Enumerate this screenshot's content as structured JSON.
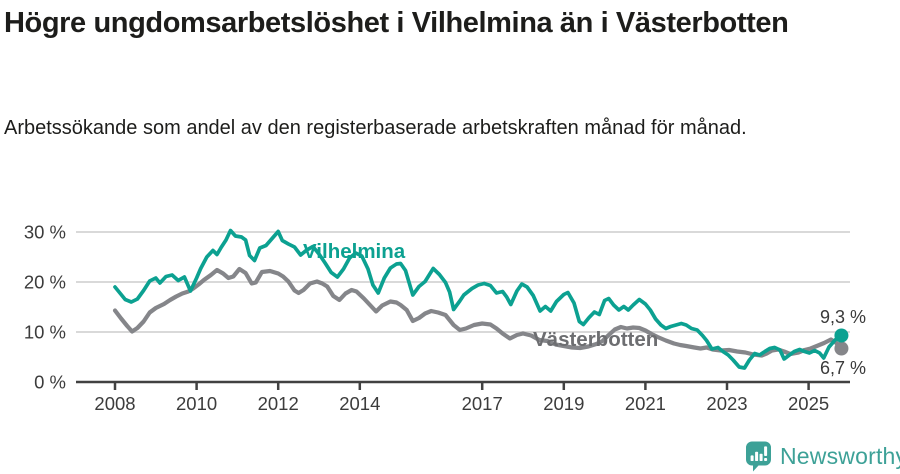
{
  "header": {
    "title": "Högre ungdomsarbetslöshet i Vilhelmina än i Västerbotten",
    "subtitle": "Arbetssökande som andel av den registerbaserade arbetskraften månad för månad."
  },
  "footer": {
    "brand": "Newsworthy"
  },
  "colors": {
    "vilhelmina": "#0ca191",
    "vasterbotten_line": "#85868a",
    "vasterbotten_label": "#6d6e71",
    "gridline": "#d9d9d9",
    "axis": "#414141",
    "tick_text": "#3c3c3c",
    "value_label_text": "#3a3a3a",
    "brand_teal": "#3da197",
    "text": "#1d1d1b"
  },
  "chart_data": {
    "type": "line",
    "title": "Högre ungdomsarbetslöshet i Vilhelmina än i Västerbotten",
    "subtitle": "Arbetssökande som andel av den registerbaserade arbetskraften månad för månad.",
    "unit": "%",
    "grid": "horizontal",
    "legend_position": "inline-labels",
    "x_range": [
      2008,
      2025.9
    ],
    "ylim": [
      0,
      32
    ],
    "x_ticks": [
      2008,
      2010,
      2012,
      2014,
      2017,
      2019,
      2021,
      2023,
      2025
    ],
    "y_ticks": [
      {
        "value": 0,
        "label": "0 %"
      },
      {
        "value": 10,
        "label": "10 %"
      },
      {
        "value": 20,
        "label": "20 %"
      },
      {
        "value": 30,
        "label": "30 %"
      }
    ],
    "series": [
      {
        "name": "Vilhelmina",
        "color": "#0ca191",
        "end_value": 9.3,
        "end_label": "9,3 %",
        "points": [
          [
            2008.0,
            19.0
          ],
          [
            2008.1,
            18.0
          ],
          [
            2008.25,
            16.5
          ],
          [
            2008.4,
            16.0
          ],
          [
            2008.55,
            16.6
          ],
          [
            2008.7,
            18.3
          ],
          [
            2008.85,
            20.2
          ],
          [
            2009.0,
            20.8
          ],
          [
            2009.1,
            19.8
          ],
          [
            2009.25,
            21.1
          ],
          [
            2009.4,
            21.4
          ],
          [
            2009.55,
            20.3
          ],
          [
            2009.7,
            21.0
          ],
          [
            2009.85,
            18.2
          ],
          [
            2010.0,
            20.8
          ],
          [
            2010.1,
            22.7
          ],
          [
            2010.25,
            25.0
          ],
          [
            2010.4,
            26.3
          ],
          [
            2010.5,
            25.5
          ],
          [
            2010.6,
            26.9
          ],
          [
            2010.72,
            28.4
          ],
          [
            2010.83,
            30.3
          ],
          [
            2010.95,
            29.2
          ],
          [
            2011.1,
            29.0
          ],
          [
            2011.2,
            28.4
          ],
          [
            2011.3,
            25.3
          ],
          [
            2011.42,
            24.3
          ],
          [
            2011.55,
            26.8
          ],
          [
            2011.7,
            27.3
          ],
          [
            2011.85,
            28.7
          ],
          [
            2012.0,
            30.1
          ],
          [
            2012.1,
            28.3
          ],
          [
            2012.25,
            27.6
          ],
          [
            2012.4,
            27.0
          ],
          [
            2012.55,
            25.4
          ],
          [
            2012.7,
            26.4
          ],
          [
            2012.85,
            27.1
          ],
          [
            2013.0,
            25.6
          ],
          [
            2013.15,
            23.8
          ],
          [
            2013.3,
            21.9
          ],
          [
            2013.45,
            21.0
          ],
          [
            2013.6,
            22.6
          ],
          [
            2013.75,
            24.8
          ],
          [
            2013.9,
            25.8
          ],
          [
            2014.05,
            25.2
          ],
          [
            2014.2,
            22.6
          ],
          [
            2014.32,
            19.4
          ],
          [
            2014.45,
            17.8
          ],
          [
            2014.6,
            20.8
          ],
          [
            2014.75,
            22.8
          ],
          [
            2014.9,
            23.6
          ],
          [
            2015.0,
            23.7
          ],
          [
            2015.12,
            22.3
          ],
          [
            2015.3,
            17.4
          ],
          [
            2015.45,
            19.1
          ],
          [
            2015.6,
            20.1
          ],
          [
            2015.8,
            22.7
          ],
          [
            2015.95,
            21.5
          ],
          [
            2016.1,
            19.9
          ],
          [
            2016.2,
            18.0
          ],
          [
            2016.3,
            14.5
          ],
          [
            2016.45,
            16.2
          ],
          [
            2016.55,
            17.4
          ],
          [
            2016.75,
            18.7
          ],
          [
            2016.9,
            19.4
          ],
          [
            2017.05,
            19.7
          ],
          [
            2017.2,
            19.3
          ],
          [
            2017.35,
            17.8
          ],
          [
            2017.5,
            18.1
          ],
          [
            2017.6,
            17.0
          ],
          [
            2017.7,
            15.5
          ],
          [
            2017.85,
            18.2
          ],
          [
            2017.97,
            19.6
          ],
          [
            2018.1,
            19.0
          ],
          [
            2018.25,
            17.3
          ],
          [
            2018.42,
            14.2
          ],
          [
            2018.55,
            15.1
          ],
          [
            2018.68,
            14.2
          ],
          [
            2018.82,
            16.1
          ],
          [
            2019.0,
            17.5
          ],
          [
            2019.1,
            17.9
          ],
          [
            2019.25,
            15.8
          ],
          [
            2019.38,
            12.1
          ],
          [
            2019.48,
            11.5
          ],
          [
            2019.62,
            12.9
          ],
          [
            2019.75,
            14.0
          ],
          [
            2019.87,
            13.5
          ],
          [
            2020.0,
            16.3
          ],
          [
            2020.1,
            16.7
          ],
          [
            2020.22,
            15.4
          ],
          [
            2020.35,
            14.4
          ],
          [
            2020.47,
            15.1
          ],
          [
            2020.58,
            14.4
          ],
          [
            2020.7,
            15.4
          ],
          [
            2020.85,
            16.5
          ],
          [
            2021.0,
            15.6
          ],
          [
            2021.12,
            14.4
          ],
          [
            2021.25,
            12.6
          ],
          [
            2021.38,
            11.4
          ],
          [
            2021.5,
            10.7
          ],
          [
            2021.62,
            11.1
          ],
          [
            2021.75,
            11.4
          ],
          [
            2021.88,
            11.7
          ],
          [
            2022.0,
            11.4
          ],
          [
            2022.13,
            10.7
          ],
          [
            2022.27,
            10.4
          ],
          [
            2022.4,
            9.3
          ],
          [
            2022.5,
            8.3
          ],
          [
            2022.63,
            6.6
          ],
          [
            2022.78,
            6.9
          ],
          [
            2022.9,
            6.1
          ],
          [
            2023.03,
            5.4
          ],
          [
            2023.15,
            4.4
          ],
          [
            2023.3,
            3.0
          ],
          [
            2023.43,
            2.8
          ],
          [
            2023.55,
            4.4
          ],
          [
            2023.68,
            5.7
          ],
          [
            2023.8,
            5.4
          ],
          [
            2023.93,
            6.1
          ],
          [
            2024.05,
            6.7
          ],
          [
            2024.17,
            6.9
          ],
          [
            2024.3,
            6.4
          ],
          [
            2024.4,
            4.6
          ],
          [
            2024.53,
            5.4
          ],
          [
            2024.65,
            6.1
          ],
          [
            2024.78,
            6.5
          ],
          [
            2024.9,
            6.1
          ],
          [
            2025.02,
            5.8
          ],
          [
            2025.15,
            6.3
          ],
          [
            2025.27,
            5.8
          ],
          [
            2025.37,
            4.8
          ],
          [
            2025.5,
            7.0
          ],
          [
            2025.65,
            8.4
          ],
          [
            2025.78,
            9.3
          ]
        ]
      },
      {
        "name": "Västerbotten",
        "color": "#85868a",
        "label_color": "#6d6e71",
        "end_value": 6.7,
        "end_label": "6,7 %",
        "points": [
          [
            2008.0,
            14.3
          ],
          [
            2008.15,
            12.7
          ],
          [
            2008.3,
            11.2
          ],
          [
            2008.42,
            10.1
          ],
          [
            2008.55,
            10.8
          ],
          [
            2008.7,
            12.1
          ],
          [
            2008.85,
            13.9
          ],
          [
            2009.0,
            14.8
          ],
          [
            2009.2,
            15.6
          ],
          [
            2009.35,
            16.4
          ],
          [
            2009.5,
            17.1
          ],
          [
            2009.65,
            17.7
          ],
          [
            2009.8,
            18.1
          ],
          [
            2009.92,
            18.7
          ],
          [
            2010.05,
            19.5
          ],
          [
            2010.18,
            20.4
          ],
          [
            2010.35,
            21.4
          ],
          [
            2010.5,
            22.4
          ],
          [
            2010.65,
            21.7
          ],
          [
            2010.78,
            20.8
          ],
          [
            2010.9,
            21.1
          ],
          [
            2011.05,
            22.6
          ],
          [
            2011.2,
            21.8
          ],
          [
            2011.35,
            19.7
          ],
          [
            2011.45,
            19.9
          ],
          [
            2011.6,
            22.0
          ],
          [
            2011.8,
            22.2
          ],
          [
            2012.0,
            21.7
          ],
          [
            2012.12,
            21.1
          ],
          [
            2012.25,
            20.1
          ],
          [
            2012.4,
            18.3
          ],
          [
            2012.5,
            17.8
          ],
          [
            2012.62,
            18.4
          ],
          [
            2012.78,
            19.7
          ],
          [
            2012.95,
            20.1
          ],
          [
            2013.08,
            19.7
          ],
          [
            2013.2,
            19.1
          ],
          [
            2013.35,
            17.2
          ],
          [
            2013.5,
            16.4
          ],
          [
            2013.65,
            17.7
          ],
          [
            2013.8,
            18.4
          ],
          [
            2013.92,
            18.1
          ],
          [
            2014.1,
            16.7
          ],
          [
            2014.25,
            15.4
          ],
          [
            2014.4,
            14.1
          ],
          [
            2014.55,
            15.3
          ],
          [
            2014.75,
            16.1
          ],
          [
            2014.9,
            15.9
          ],
          [
            2015.0,
            15.4
          ],
          [
            2015.15,
            14.4
          ],
          [
            2015.3,
            12.2
          ],
          [
            2015.45,
            12.8
          ],
          [
            2015.6,
            13.7
          ],
          [
            2015.75,
            14.2
          ],
          [
            2015.92,
            13.9
          ],
          [
            2016.1,
            13.4
          ],
          [
            2016.3,
            11.4
          ],
          [
            2016.45,
            10.4
          ],
          [
            2016.6,
            10.7
          ],
          [
            2016.8,
            11.4
          ],
          [
            2017.0,
            11.7
          ],
          [
            2017.2,
            11.5
          ],
          [
            2017.35,
            10.7
          ],
          [
            2017.5,
            9.7
          ],
          [
            2017.68,
            8.7
          ],
          [
            2017.85,
            9.4
          ],
          [
            2018.0,
            9.7
          ],
          [
            2018.2,
            9.3
          ],
          [
            2018.4,
            8.4
          ],
          [
            2018.6,
            8.2
          ],
          [
            2018.8,
            7.5
          ],
          [
            2019.0,
            7.2
          ],
          [
            2019.2,
            6.9
          ],
          [
            2019.4,
            6.8
          ],
          [
            2019.6,
            7.1
          ],
          [
            2019.8,
            7.6
          ],
          [
            2019.95,
            8.2
          ],
          [
            2020.1,
            9.4
          ],
          [
            2020.25,
            10.5
          ],
          [
            2020.4,
            11.0
          ],
          [
            2020.55,
            10.7
          ],
          [
            2020.7,
            10.9
          ],
          [
            2020.85,
            10.8
          ],
          [
            2021.0,
            10.3
          ],
          [
            2021.15,
            9.6
          ],
          [
            2021.3,
            9.0
          ],
          [
            2021.5,
            8.3
          ],
          [
            2021.7,
            7.7
          ],
          [
            2021.85,
            7.4
          ],
          [
            2022.0,
            7.2
          ],
          [
            2022.2,
            6.9
          ],
          [
            2022.35,
            6.7
          ],
          [
            2022.5,
            6.9
          ],
          [
            2022.65,
            6.5
          ],
          [
            2022.85,
            6.3
          ],
          [
            2023.05,
            6.4
          ],
          [
            2023.25,
            6.1
          ],
          [
            2023.45,
            5.9
          ],
          [
            2023.65,
            5.5
          ],
          [
            2023.85,
            5.3
          ],
          [
            2023.97,
            5.7
          ],
          [
            2024.1,
            6.3
          ],
          [
            2024.25,
            6.5
          ],
          [
            2024.4,
            6.1
          ],
          [
            2024.55,
            5.6
          ],
          [
            2024.75,
            5.9
          ],
          [
            2024.9,
            6.4
          ],
          [
            2025.05,
            6.7
          ],
          [
            2025.2,
            7.2
          ],
          [
            2025.38,
            7.8
          ],
          [
            2025.55,
            8.5
          ],
          [
            2025.68,
            7.8
          ],
          [
            2025.78,
            6.7
          ]
        ]
      }
    ]
  }
}
